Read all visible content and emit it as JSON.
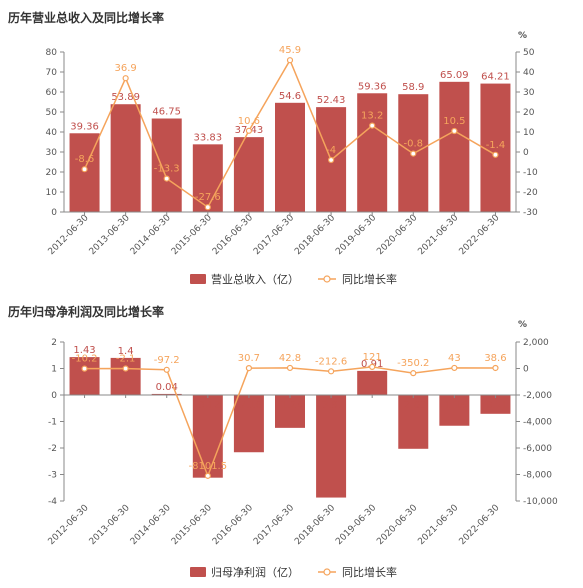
{
  "colors": {
    "bar": "#c0504d",
    "line": "#f5a45c",
    "axis": "#888888",
    "bar_label": "#c0504d",
    "line_label": "#f5a45c"
  },
  "chart_data": [
    {
      "type": "bar",
      "title": "历年营业总收入及同比增长率",
      "categories": [
        "2012-06-30",
        "2013-06-30",
        "2014-06-30",
        "2015-06-30",
        "2016-06-30",
        "2017-06-30",
        "2018-06-30",
        "2019-06-30",
        "2020-06-30",
        "2021-06-30",
        "2022-06-30"
      ],
      "series": [
        {
          "name": "营业总收入（亿）",
          "type": "bar",
          "axis": "left",
          "values": [
            39.36,
            53.89,
            46.75,
            33.83,
            37.43,
            54.6,
            52.43,
            59.36,
            58.9,
            65.09,
            64.21
          ],
          "labels": [
            "39.36",
            "53.89",
            "46.75",
            "33.83",
            "37.43",
            "54.6",
            "52.43",
            "59.36",
            "58.9",
            "65.09",
            "64.21"
          ]
        },
        {
          "name": "同比增长率",
          "type": "line",
          "axis": "right",
          "values": [
            -8.6,
            36.9,
            -13.3,
            -27.6,
            10.6,
            45.9,
            -4,
            13.2,
            -0.8,
            10.5,
            -1.4
          ],
          "labels": [
            "-8.6",
            "36.9",
            "-13.3",
            "-27.6",
            "10.6",
            "45.9",
            "-4",
            "13.2",
            "-0.8",
            "10.5",
            "-1.4"
          ]
        }
      ],
      "y_left": {
        "ylim": [
          0,
          80
        ],
        "ticks": [
          "0",
          "10",
          "20",
          "30",
          "40",
          "50",
          "60",
          "70",
          "80"
        ]
      },
      "y_right": {
        "label": "%",
        "ylim": [
          -30,
          50
        ],
        "ticks": [
          "-30",
          "-20",
          "-10",
          "0",
          "10",
          "20",
          "30",
          "40",
          "50"
        ]
      },
      "legend": "bottom"
    },
    {
      "type": "bar",
      "title": "历年归母净利润及同比增长率",
      "categories": [
        "2012-06-30",
        "2013-06-30",
        "2014-06-30",
        "2015-06-30",
        "2016-06-30",
        "2017-06-30",
        "2018-06-30",
        "2019-06-30",
        "2020-06-30",
        "2021-06-30",
        "2022-06-30"
      ],
      "series": [
        {
          "name": "归母净利润（亿）",
          "type": "bar",
          "axis": "left",
          "values": [
            1.43,
            1.4,
            0.04,
            -3.12,
            -2.16,
            -1.24,
            -3.87,
            0.91,
            -2.03,
            -1.16,
            -0.71
          ],
          "labels": [
            "1.43",
            "1.4",
            "0.04",
            "-3.12",
            "-2.16",
            "-1.24",
            "-3.87",
            "0.91",
            "-2.03",
            "-1.16",
            "-0.71"
          ]
        },
        {
          "name": "同比增长率",
          "type": "line",
          "axis": "right",
          "values": [
            -10.2,
            -2.1,
            -97.2,
            -8101.5,
            30.7,
            42.8,
            -212.6,
            121,
            -350.2,
            43,
            38.6
          ],
          "labels": [
            "-10.2",
            "-2.1",
            "-97.2",
            "-8101.5",
            "30.7",
            "42.8",
            "-212.6",
            "121",
            "-350.2",
            "43",
            "38.6"
          ]
        }
      ],
      "y_left": {
        "ylim": [
          -4,
          2
        ],
        "ticks": [
          "-4",
          "-3",
          "-2",
          "-1",
          "0",
          "1",
          "2"
        ]
      },
      "y_right": {
        "label": "%",
        "ylim": [
          -10000,
          2000
        ],
        "ticks": [
          "-10,000",
          "-8,000",
          "-6,000",
          "-4,000",
          "-2,000",
          "0",
          "2,000"
        ]
      },
      "legend": "bottom"
    }
  ]
}
